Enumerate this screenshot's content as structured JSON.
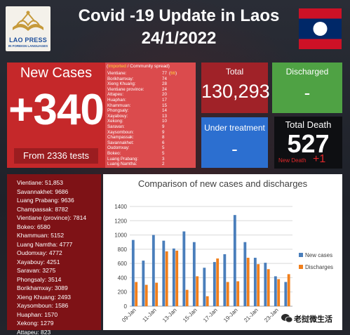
{
  "header": {
    "title_line1": "Covid -19 Update in Laos",
    "title_line2": "24/1/2022",
    "logo_name": "LAO PRESS",
    "logo_sub": "IN FOREIGN LANGUAGES",
    "logo_icon": "book-icon",
    "flag_icon": "laos-flag-icon"
  },
  "new_cases": {
    "label": "New Cases",
    "value": "+340",
    "tests": "From 2336 tests"
  },
  "imported": {
    "header_imported": "Imported",
    "header_sep": " / ",
    "header_community": "Community spread)",
    "header_open": "(",
    "rows": [
      {
        "name": "Vientiane:",
        "value": "77",
        "imported": "66"
      },
      {
        "name": "Borikhamxay:",
        "value": "74",
        "imported": ""
      },
      {
        "name": "Xieng Khuang:",
        "value": "28",
        "imported": ""
      },
      {
        "name": "Vientiane province:",
        "value": "24",
        "imported": ""
      },
      {
        "name": "Attapeu:",
        "value": "20",
        "imported": ""
      },
      {
        "name": "Huaphan:",
        "value": "17",
        "imported": ""
      },
      {
        "name": "Khammuan:",
        "value": "15",
        "imported": ""
      },
      {
        "name": "Phongsaly:",
        "value": "14",
        "imported": ""
      },
      {
        "name": "Xayabouy:",
        "value": "13",
        "imported": ""
      },
      {
        "name": "Xekong:",
        "value": "10",
        "imported": ""
      },
      {
        "name": "Saravan:",
        "value": "9",
        "imported": ""
      },
      {
        "name": "Xaysomboun:",
        "value": "9",
        "imported": ""
      },
      {
        "name": "Champassak:",
        "value": "8",
        "imported": ""
      },
      {
        "name": "Savannakhet:",
        "value": "6",
        "imported": ""
      },
      {
        "name": "Oudomxay:",
        "value": "5",
        "imported": ""
      },
      {
        "name": "Bokeo:",
        "value": "5",
        "imported": ""
      },
      {
        "name": "Luang Prabang:",
        "value": "3",
        "imported": ""
      },
      {
        "name": "Luang Namtha:",
        "value": "2",
        "imported": ""
      }
    ]
  },
  "stats": {
    "total_label": "Total",
    "total_value": "130,293",
    "discharged_label": "Discharged",
    "discharged_value": "-",
    "treatment_label": "Under treatment",
    "treatment_value": "-",
    "death_label": "Total Death",
    "death_value": "527",
    "new_death_label": "New Death",
    "new_death_value": "+1"
  },
  "provinces": [
    "Vientiane: 51,853",
    "Savannakhet: 9686",
    "Luang Prabang: 9636",
    "Champassak: 8782",
    "Vientiane (province): 7814",
    "Bokeo: 6580",
    "Khammuan: 5152",
    "Luang Namtha: 4777",
    "Oudomxay: 4772",
    "Xayabouy: 4251",
    "Saravan: 3275",
    "Phongsaly: 3514",
    "Borikhamxay: 3089",
    "Xieng Khuang: 2493",
    "Xaysomboun: 1586",
    "Huaphan: 1570",
    "Xekong: 1279",
    "Attapeu: 823"
  ],
  "chart_data": {
    "type": "bar",
    "title": "Comparison of new cases and discharges",
    "categories": [
      "09-Jan",
      "10-Jan",
      "11-Jan",
      "12-Jan",
      "13-Jan",
      "14-Jan",
      "15-Jan",
      "16-Jan",
      "17-Jan",
      "18-Jan",
      "19-Jan",
      "20-Jan",
      "21-Jan",
      "22-Jan",
      "23-Jan",
      "24-Jan"
    ],
    "tick_labels": [
      "09-Jan",
      "11-Jan",
      "13-Jan",
      "15-Jan",
      "17-Jan",
      "19-Jan",
      "21-Jan",
      "23-Jan"
    ],
    "series": [
      {
        "name": "New cases",
        "color": "#4a7ebb",
        "values": [
          930,
          640,
          1000,
          920,
          810,
          1050,
          900,
          540,
          620,
          730,
          1280,
          900,
          680,
          610,
          420,
          340
        ]
      },
      {
        "name": "Discharges",
        "color": "#f07f1c",
        "values": [
          340,
          300,
          330,
          770,
          780,
          230,
          420,
          140,
          670,
          340,
          350,
          680,
          590,
          520,
          380,
          450
        ]
      }
    ],
    "ylim": [
      0,
      1400
    ],
    "yticks": [
      0,
      200,
      400,
      600,
      800,
      1000,
      1200,
      1400
    ],
    "grid": true,
    "legend": "right"
  },
  "watermark": {
    "text": "老挝微生活",
    "icon": "wechat-icon"
  },
  "colors": {
    "new_cases_bg": "#c5282a",
    "imported_bg": "#db4b4d",
    "total_bg": "#a02228",
    "discharged_bg": "#4fa244",
    "treatment_bg": "#2c6fd0",
    "death_bg": "#0e0f12",
    "provinces_bg": "#7e1216"
  }
}
